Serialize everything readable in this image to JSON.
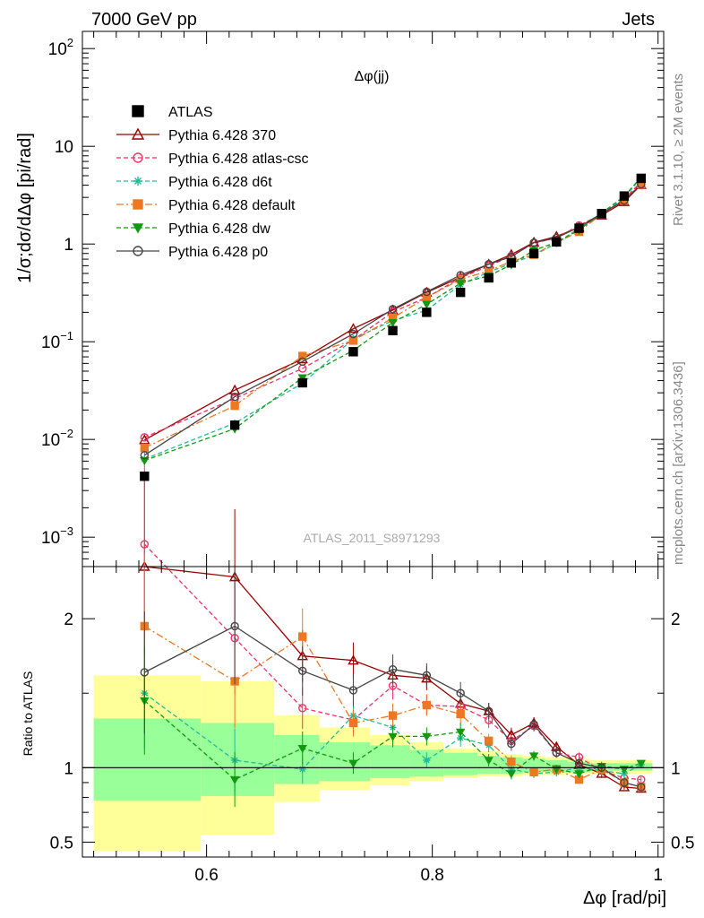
{
  "header": {
    "left": "7000 GeV pp",
    "right": "Jets"
  },
  "side_labels": {
    "rivet": "Rivet 3.1.10, ≥ 2M events",
    "mcplots": "mcplots.cern.ch [arXiv:1306.3436]"
  },
  "chart_data": {
    "type": "line",
    "title": "Δφ(jj)",
    "analysis_id": "ATLAS_2011_S8971293",
    "xlabel": "Δφ [rad/pi]",
    "ylabel": "1/σ;dσ/dΔφ [pi/rad]",
    "ratio_ylabel": "Ratio to ATLAS",
    "xlim": [
      0.49,
      1.005
    ],
    "ylim": [
      0.0005,
      150
    ],
    "yscale": "log",
    "ratio_ylim": [
      0.4,
      2.35
    ],
    "x_ticks": [
      "0.6",
      "0.8",
      "1"
    ],
    "y_ticks": [
      "10^-3",
      "10^-2",
      "10^-1",
      "1",
      "10",
      "10^2"
    ],
    "ratio_ticks": [
      "0.5",
      "1",
      "2"
    ],
    "legend_position": "top-left",
    "x": [
      0.545,
      0.625,
      0.685,
      0.73,
      0.765,
      0.795,
      0.825,
      0.85,
      0.87,
      0.89,
      0.91,
      0.93,
      0.95,
      0.97,
      0.985
    ],
    "atlas": [
      0.0042,
      0.014,
      0.038,
      0.079,
      0.13,
      0.2,
      0.32,
      0.45,
      0.64,
      0.8,
      1.05,
      1.45,
      2.05,
      3.1,
      4.7
    ],
    "series": [
      {
        "name": "Pythia 6.428 370",
        "color": "#990000",
        "dash": "",
        "marker": "triangle-open",
        "ratio": [
          2.35,
          2.28,
          1.75,
          1.72,
          1.62,
          1.6,
          1.43,
          1.38,
          1.22,
          1.3,
          1.14,
          1.02,
          0.96,
          0.87,
          0.86
        ]
      },
      {
        "name": "Pythia 6.428 atlas-csc",
        "color": "#ee3366",
        "dash": "5,3",
        "marker": "circle-open",
        "ratio": [
          2.5,
          1.87,
          1.4,
          1.32,
          1.55,
          1.42,
          1.41,
          1.32,
          1.18,
          1.28,
          1.1,
          1.07,
          0.98,
          0.93,
          0.92
        ]
      },
      {
        "name": "Pythia 6.428 d6t",
        "color": "#22bb99",
        "dash": "5,3",
        "marker": "star",
        "ratio": [
          1.5,
          1.05,
          0.99,
          1.35,
          1.27,
          1.05,
          1.2,
          1.15,
          0.99,
          0.96,
          0.97,
          1.0,
          0.98,
          0.96,
          1.02
        ]
      },
      {
        "name": "Pythia 6.428 default",
        "color": "#ee7722",
        "dash": "8,3,2,3",
        "marker": "square",
        "ratio": [
          1.95,
          1.58,
          1.88,
          1.3,
          1.35,
          1.42,
          1.36,
          1.18,
          1.04,
          0.97,
          0.99,
          0.92,
          0.99,
          0.9,
          0.87
        ]
      },
      {
        "name": "Pythia 6.428 dw",
        "color": "#119911",
        "dash": "5,3",
        "marker": "triangle-down",
        "ratio": [
          1.45,
          0.92,
          1.13,
          1.03,
          1.21,
          1.21,
          1.24,
          1.05,
          0.96,
          1.08,
          0.99,
          0.96,
          1.01,
          0.99,
          1.03
        ]
      },
      {
        "name": "Pythia 6.428 p0",
        "color": "#444444",
        "dash": "",
        "marker": "circle-open",
        "ratio": [
          1.64,
          1.95,
          1.65,
          1.52,
          1.66,
          1.62,
          1.5,
          1.38,
          1.16,
          1.29,
          1.1,
          1.03,
          1.0,
          0.9,
          0.87
        ]
      }
    ],
    "uncertainty_bands": [
      {
        "x0": 0.5,
        "x1": 0.595,
        "inner": [
          0.78,
          1.33
        ],
        "outer": [
          0.44,
          1.62
        ]
      },
      {
        "x0": 0.595,
        "x1": 0.66,
        "inner": [
          0.81,
          1.3
        ],
        "outer": [
          0.55,
          1.58
        ]
      },
      {
        "x0": 0.66,
        "x1": 0.7,
        "inner": [
          0.89,
          1.22
        ],
        "outer": [
          0.77,
          1.35
        ]
      },
      {
        "x0": 0.7,
        "x1": 0.745,
        "inner": [
          0.91,
          1.17
        ],
        "outer": [
          0.85,
          1.27
        ]
      },
      {
        "x0": 0.745,
        "x1": 0.78,
        "inner": [
          0.93,
          1.15
        ],
        "outer": [
          0.88,
          1.22
        ]
      },
      {
        "x0": 0.78,
        "x1": 0.81,
        "inner": [
          0.94,
          1.12
        ],
        "outer": [
          0.91,
          1.17
        ]
      },
      {
        "x0": 0.81,
        "x1": 0.84,
        "inner": [
          0.95,
          1.1
        ],
        "outer": [
          0.93,
          1.13
        ]
      },
      {
        "x0": 0.84,
        "x1": 0.86,
        "inner": [
          0.96,
          1.08
        ],
        "outer": [
          0.94,
          1.11
        ]
      },
      {
        "x0": 0.86,
        "x1": 0.88,
        "inner": [
          0.96,
          1.07
        ],
        "outer": [
          0.94,
          1.09
        ]
      },
      {
        "x0": 0.88,
        "x1": 0.9,
        "inner": [
          0.97,
          1.06
        ],
        "outer": [
          0.95,
          1.08
        ]
      },
      {
        "x0": 0.9,
        "x1": 0.92,
        "inner": [
          0.97,
          1.05
        ],
        "outer": [
          0.95,
          1.07
        ]
      },
      {
        "x0": 0.92,
        "x1": 0.94,
        "inner": [
          0.97,
          1.04
        ],
        "outer": [
          0.96,
          1.06
        ]
      },
      {
        "x0": 0.94,
        "x1": 0.96,
        "inner": [
          0.98,
          1.03
        ],
        "outer": [
          0.96,
          1.05
        ]
      },
      {
        "x0": 0.96,
        "x1": 0.975,
        "inner": [
          0.98,
          1.03
        ],
        "outer": [
          0.96,
          1.05
        ]
      },
      {
        "x0": 0.975,
        "x1": 0.995,
        "inner": [
          0.98,
          1.03
        ],
        "outer": [
          0.96,
          1.05
        ]
      }
    ],
    "band_colors": {
      "inner": "#99ff99",
      "outer": "#ffff99"
    }
  },
  "legend_data_label": "ATLAS"
}
